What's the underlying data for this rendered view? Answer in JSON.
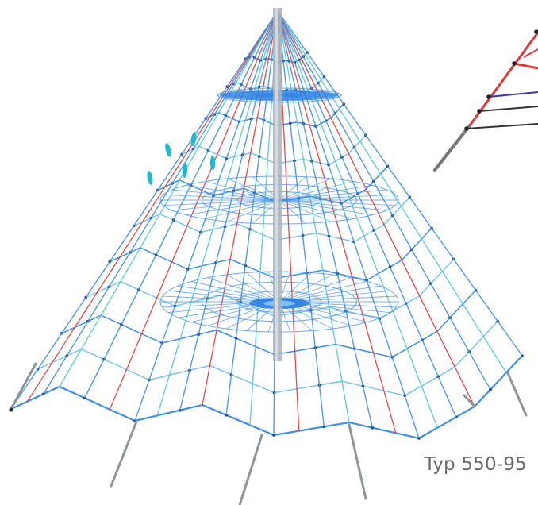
{
  "caption": "Typ 550-95",
  "palette": {
    "net_blue": "#3f8fe6",
    "net_light": "#7bc6e8",
    "net_cyan": "#59c7d6",
    "rope_red": "#e03838",
    "mast": "#a9b1b8",
    "anchor": "#8e959b",
    "knot": "#1f3e78",
    "disc": "#2a7fe0"
  },
  "icons": {
    "main": "rope-pyramid-icon",
    "detail": "red-rope-detail-icon"
  }
}
